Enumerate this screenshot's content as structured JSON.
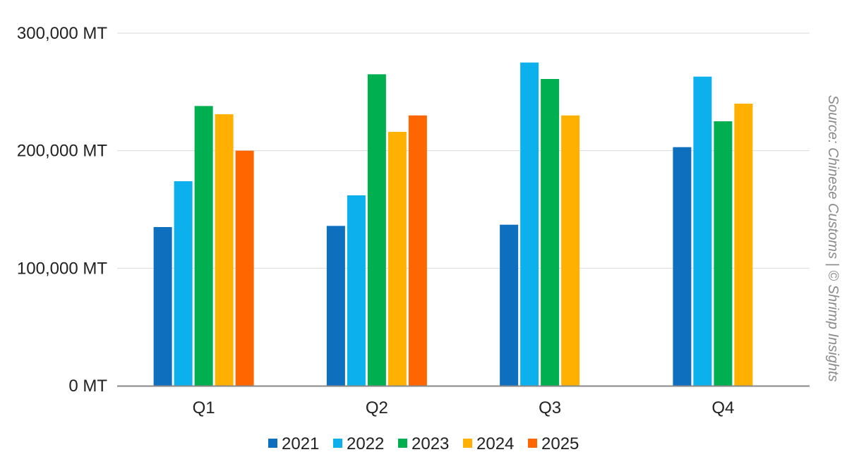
{
  "chart_data": {
    "type": "bar",
    "categories": [
      "Q1",
      "Q2",
      "Q3",
      "Q4"
    ],
    "series": [
      {
        "name": "2021",
        "color": "#0F6FBF",
        "values": [
          135000,
          136000,
          137000,
          203000
        ]
      },
      {
        "name": "2022",
        "color": "#0BB0EC",
        "values": [
          174000,
          162000,
          275000,
          263000
        ]
      },
      {
        "name": "2023",
        "color": "#00B050",
        "values": [
          238000,
          265000,
          261000,
          225000
        ]
      },
      {
        "name": "2024",
        "color": "#FFB000",
        "values": [
          231000,
          216000,
          230000,
          240000
        ]
      },
      {
        "name": "2025",
        "color": "#FF6600",
        "values": [
          200000,
          230000,
          null,
          null
        ]
      }
    ],
    "y_ticks": [
      "0 MT",
      "100,000 MT",
      "200,000 MT",
      "300,000 MT"
    ],
    "y_tick_values": [
      0,
      100000,
      200000,
      300000
    ],
    "ylim": [
      0,
      300000
    ],
    "grid": true,
    "legend_position": "bottom-center",
    "title": "",
    "xlabel": "",
    "ylabel": ""
  },
  "source_note": "Source: Chinese Customs | © Shrimp Insights"
}
